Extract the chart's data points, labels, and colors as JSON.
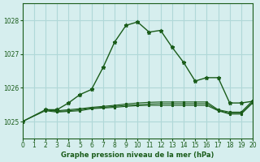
{
  "xlabel": "Graphe pression niveau de la mer (hPa)",
  "xlim": [
    0,
    20
  ],
  "ylim": [
    1024.5,
    1028.5
  ],
  "yticks": [
    1025,
    1026,
    1027,
    1028
  ],
  "xticks": [
    0,
    1,
    2,
    3,
    4,
    5,
    6,
    7,
    8,
    9,
    10,
    11,
    12,
    13,
    14,
    15,
    16,
    17,
    18,
    19,
    20
  ],
  "bg_color": "#d6eeee",
  "grid_color": "#b0d8d8",
  "line_color": "#1a5c1a",
  "main_x": [
    0,
    2,
    3,
    4,
    5,
    6,
    7,
    8,
    9,
    10,
    11,
    12,
    13,
    14,
    15,
    16,
    17,
    18,
    19,
    20
  ],
  "main_y": [
    1025.0,
    1025.35,
    1025.35,
    1025.55,
    1025.8,
    1025.95,
    1026.6,
    1027.35,
    1027.85,
    1027.95,
    1027.65,
    1027.7,
    1027.2,
    1026.75,
    1026.2,
    1026.3,
    1026.3,
    1025.55,
    1025.55,
    1025.6
  ],
  "flat1_x": [
    2,
    3,
    4,
    5,
    6,
    7,
    8,
    9,
    10,
    11,
    12,
    13,
    14,
    15,
    16,
    17,
    18,
    19,
    20
  ],
  "flat1_y": [
    1025.35,
    1025.32,
    1025.35,
    1025.38,
    1025.42,
    1025.45,
    1025.48,
    1025.52,
    1025.55,
    1025.57,
    1025.58,
    1025.58,
    1025.58,
    1025.58,
    1025.58,
    1025.35,
    1025.28,
    1025.28,
    1025.62
  ],
  "flat2_x": [
    2,
    3,
    4,
    5,
    6,
    7,
    8,
    9,
    10,
    11,
    12,
    13,
    14,
    15,
    16,
    17,
    18,
    19,
    20
  ],
  "flat2_y": [
    1025.35,
    1025.3,
    1025.32,
    1025.35,
    1025.4,
    1025.42,
    1025.45,
    1025.48,
    1025.5,
    1025.52,
    1025.53,
    1025.53,
    1025.53,
    1025.53,
    1025.53,
    1025.33,
    1025.25,
    1025.25,
    1025.58
  ],
  "flat3_x": [
    0,
    2,
    3,
    4,
    5,
    6,
    7,
    8,
    9,
    10,
    11,
    12,
    13,
    14,
    15,
    16,
    17,
    18,
    19,
    20
  ],
  "flat3_y": [
    1025.0,
    1025.32,
    1025.28,
    1025.3,
    1025.32,
    1025.38,
    1025.4,
    1025.42,
    1025.45,
    1025.47,
    1025.48,
    1025.48,
    1025.48,
    1025.48,
    1025.48,
    1025.48,
    1025.32,
    1025.22,
    1025.22,
    1025.55
  ]
}
